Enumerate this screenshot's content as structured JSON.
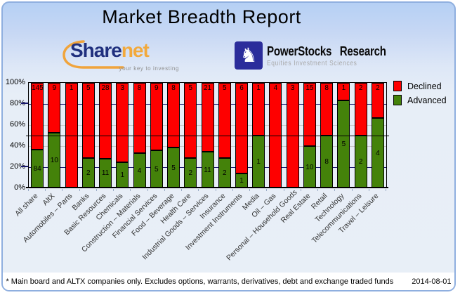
{
  "header": {
    "title": "Market Breadth Report"
  },
  "logos": {
    "sharenet": {
      "part1": "Share",
      "part2": "net",
      "tagline": "your key to investing"
    },
    "powerstocks": {
      "knight_glyph": "♞",
      "name": "PowerStocks Research",
      "subtitle": "Equities Investment Sciences"
    }
  },
  "chart_data": {
    "type": "bar",
    "stacked": true,
    "normalized_to": "100%",
    "title": "Market Breadth Report",
    "categories": [
      "All share",
      "AltX",
      "Automobiles – Parts",
      "Banks",
      "Basic Resources",
      "Chemicals",
      "Construction – Materials",
      "Financial Services",
      "Food – Beverage",
      "Health Care",
      "Industrial Goods – Services",
      "Insurance",
      "Investment Instruments",
      "Media",
      "Oil – Gas",
      "Personal – Household Goods",
      "Real Estate",
      "Retail",
      "Technology",
      "Telecommunications",
      "Travel – Leisure"
    ],
    "series": [
      {
        "name": "Declined",
        "color": "#fe0000",
        "values": [
          145,
          9,
          1,
          5,
          28,
          3,
          8,
          9,
          8,
          5,
          21,
          5,
          6,
          1,
          4,
          3,
          15,
          8,
          1,
          2,
          2
        ]
      },
      {
        "name": "Advanced",
        "color": "#44820a",
        "values": [
          84,
          10,
          0,
          2,
          11,
          1,
          4,
          5,
          5,
          2,
          11,
          2,
          1,
          1,
          0,
          0,
          10,
          8,
          5,
          2,
          4
        ]
      }
    ],
    "y_ticks": [
      "100%",
      "80%",
      "60%",
      "40%",
      "20%",
      "0%"
    ],
    "ylim": [
      0,
      100
    ],
    "reference_line_pct": 50,
    "gridlines_pct": {
      "navy": [
        80,
        20
      ],
      "grey": [
        60,
        40
      ]
    },
    "legend": [
      {
        "label": "Declined",
        "color": "#fe0000"
      },
      {
        "label": "Advanced",
        "color": "#44820a"
      }
    ],
    "legend_position": "top-right"
  },
  "footer": {
    "note": "* Main board and ALTX companies only. Excludes options, warrants, derivatives, debt and exchange traded funds",
    "date": "2014-08-01"
  },
  "colors": {
    "declined": "#fe0000",
    "advanced": "#44820a",
    "card_border": "#8fafdf",
    "grid_navy": "#1a1a70",
    "grid_grey": "#c6c6c6",
    "reference_line": "#000000",
    "sharenet_blue": "#20307e",
    "sharenet_orange": "#f2a93c",
    "powerstocks_blue": "#2b2d9b"
  }
}
